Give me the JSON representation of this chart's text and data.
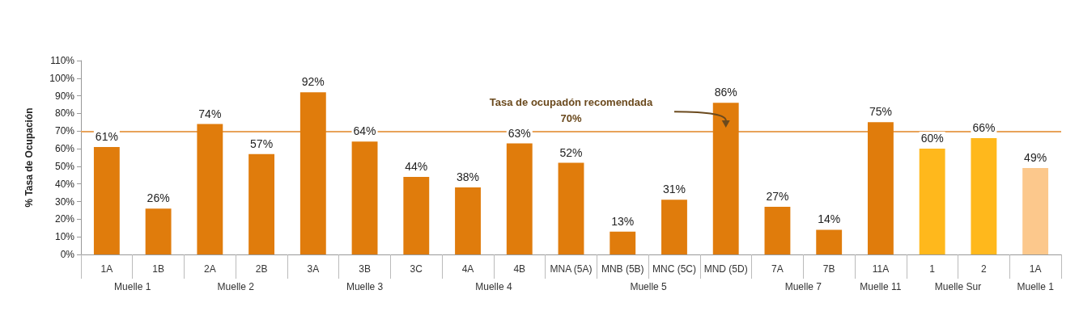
{
  "chart_data": {
    "type": "bar",
    "categories": [
      "1A",
      "1B",
      "2A",
      "2B",
      "3A",
      "3B",
      "3C",
      "4A",
      "4B",
      "MNA (5A)",
      "MNB (5B)",
      "MNC (5C)",
      "MND (5D)",
      "7A",
      "7B",
      "11A",
      "1",
      "2",
      "1A"
    ],
    "values": [
      61,
      26,
      74,
      57,
      92,
      64,
      44,
      38,
      63,
      52,
      13,
      31,
      86,
      27,
      14,
      75,
      60,
      66,
      49
    ],
    "value_labels": [
      "61%",
      "26%",
      "74%",
      "57%",
      "92%",
      "64%",
      "44%",
      "38%",
      "63%",
      "52%",
      "13%",
      "31%",
      "86%",
      "27%",
      "14%",
      "75%",
      "60%",
      "66%",
      "49%"
    ],
    "colors": [
      "#e07c0c",
      "#e07c0c",
      "#e07c0c",
      "#e07c0c",
      "#e07c0c",
      "#e07c0c",
      "#e07c0c",
      "#e07c0c",
      "#e07c0c",
      "#e07c0c",
      "#e07c0c",
      "#e07c0c",
      "#e07c0c",
      "#e07c0c",
      "#e07c0c",
      "#e07c0c",
      "#ffb81c",
      "#ffb81c",
      "#fcc88c"
    ],
    "ylabel": "% Tasa de Ocupación",
    "ylim": [
      0,
      110
    ],
    "yticks": [
      {
        "value": 0,
        "label": "0%"
      },
      {
        "value": 10,
        "label": "10%"
      },
      {
        "value": 20,
        "label": "20%"
      },
      {
        "value": 30,
        "label": "30%"
      },
      {
        "value": 40,
        "label": "40%"
      },
      {
        "value": 50,
        "label": "50%"
      },
      {
        "value": 60,
        "label": "60%"
      },
      {
        "value": 70,
        "label": "70%"
      },
      {
        "value": 80,
        "label": "80%"
      },
      {
        "value": 90,
        "label": "90%"
      },
      {
        "value": 100,
        "label": "100%"
      },
      {
        "value": 110,
        "label": "110%"
      }
    ],
    "ref_lines": [
      {
        "axis": "y",
        "value": 70,
        "label": "Tasa de ocupadón recomendada\n70%",
        "color": "#e8a35a"
      }
    ],
    "annotations": [
      "Muelle 1",
      "Muelle 2",
      "Muelle 3",
      "Muelle 4",
      "Muelle 5",
      "Muelle 7",
      "Muelle 11",
      "Muelle Sur",
      "Muelle 1"
    ],
    "grid": false
  }
}
